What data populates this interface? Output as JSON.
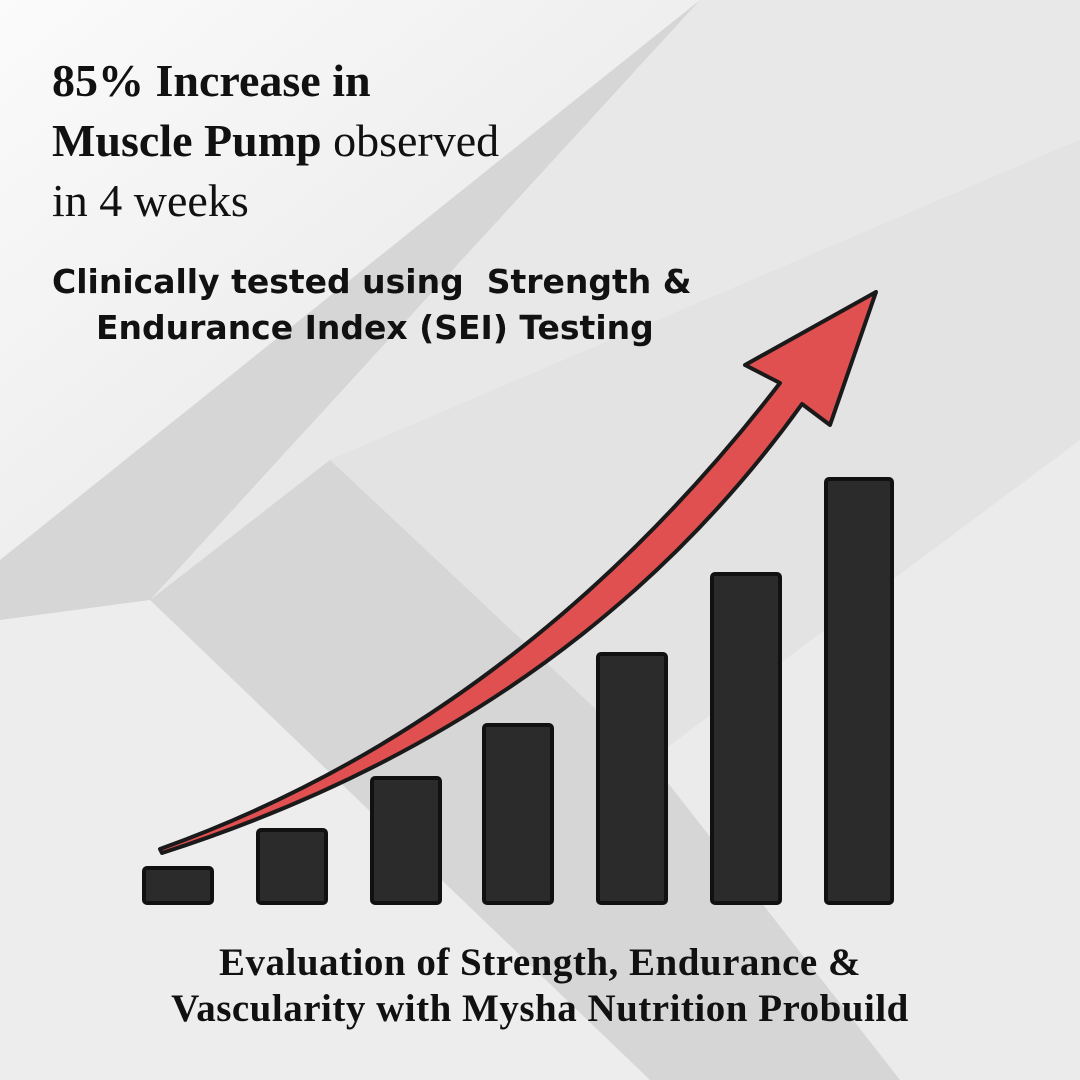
{
  "headline": {
    "line1": "85% Increase in",
    "line2_bold": "Muscle Pump",
    "line2_regular": "observed",
    "line3": "in 4 weeks"
  },
  "subtitle": {
    "line1": "Clinically tested using  Strength &",
    "line2": "Endurance Index (SEI) Testing"
  },
  "footer": {
    "line1": "Evaluation of Strength, Endurance &",
    "line2": "Vascularity with Mysha Nutrition Probuild"
  }
}
